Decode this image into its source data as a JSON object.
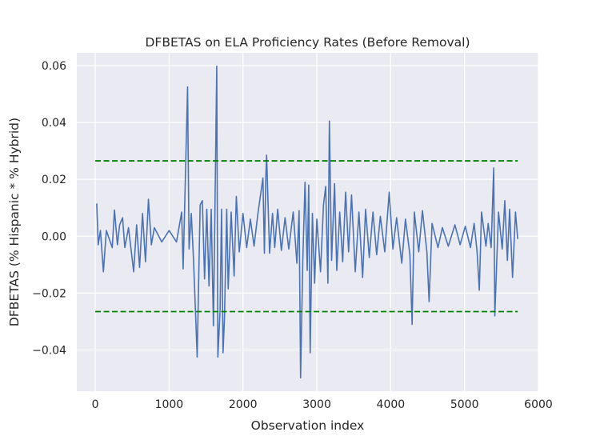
{
  "chart_data": {
    "type": "line",
    "title": "DFBETAS on ELA Proficiency Rates (Before Removal)",
    "xlabel": "Observation index",
    "ylabel": "DFBETAS (% Hispanic * % Hybrid)",
    "xlim": [
      -250,
      6000
    ],
    "ylim": [
      -0.0545,
      0.0645
    ],
    "xticks": [
      0,
      1000,
      2000,
      3000,
      4000,
      5000,
      6000
    ],
    "xtick_labels": [
      "0",
      "1000",
      "2000",
      "3000",
      "4000",
      "5000",
      "6000"
    ],
    "yticks": [
      -0.04,
      -0.02,
      0.0,
      0.02,
      0.04,
      0.06
    ],
    "ytick_labels": [
      "−0.04",
      "−0.02",
      "0.00",
      "0.02",
      "0.04",
      "0.06"
    ],
    "grid": true,
    "n_observations": 5720,
    "series": [
      {
        "values": [
          [
            20,
            0.0115
          ],
          [
            40,
            -0.003
          ],
          [
            70,
            0.002
          ],
          [
            110,
            -0.0125
          ],
          [
            150,
            0.002
          ],
          [
            230,
            -0.004
          ],
          [
            260,
            0.0092
          ],
          [
            300,
            -0.003
          ],
          [
            330,
            0.004
          ],
          [
            370,
            0.0065
          ],
          [
            400,
            -0.004
          ],
          [
            450,
            0.003
          ],
          [
            520,
            -0.0125
          ],
          [
            560,
            0.004
          ],
          [
            600,
            -0.011
          ],
          [
            640,
            0.008
          ],
          [
            680,
            -0.009
          ],
          [
            720,
            0.013
          ],
          [
            760,
            -0.003
          ],
          [
            800,
            0.003
          ],
          [
            900,
            -0.002
          ],
          [
            1000,
            0.002
          ],
          [
            1100,
            -0.002
          ],
          [
            1170,
            0.0085
          ],
          [
            1190,
            -0.0115
          ],
          [
            1250,
            0.0525
          ],
          [
            1270,
            -0.0045
          ],
          [
            1300,
            0.008
          ],
          [
            1330,
            -0.008
          ],
          [
            1380,
            -0.0425
          ],
          [
            1420,
            0.011
          ],
          [
            1450,
            0.0125
          ],
          [
            1480,
            -0.015
          ],
          [
            1510,
            0.0095
          ],
          [
            1540,
            -0.0175
          ],
          [
            1570,
            0.0095
          ],
          [
            1600,
            -0.0315
          ],
          [
            1620,
            0.0085
          ],
          [
            1645,
            0.0598
          ],
          [
            1660,
            -0.0425
          ],
          [
            1690,
            -0.026
          ],
          [
            1710,
            0.0095
          ],
          [
            1730,
            -0.041
          ],
          [
            1750,
            -0.0285
          ],
          [
            1780,
            0.0095
          ],
          [
            1800,
            -0.0185
          ],
          [
            1840,
            0.0085
          ],
          [
            1880,
            -0.014
          ],
          [
            1910,
            0.014
          ],
          [
            1950,
            -0.0055
          ],
          [
            2000,
            0.008
          ],
          [
            2050,
            -0.004
          ],
          [
            2100,
            0.006
          ],
          [
            2150,
            -0.0035
          ],
          [
            2200,
            0.0075
          ],
          [
            2270,
            0.0205
          ],
          [
            2290,
            -0.006
          ],
          [
            2310,
            0.0215
          ],
          [
            2320,
            0.0285
          ],
          [
            2360,
            -0.006
          ],
          [
            2400,
            0.008
          ],
          [
            2430,
            -0.004
          ],
          [
            2470,
            0.0095
          ],
          [
            2520,
            -0.005
          ],
          [
            2570,
            0.0065
          ],
          [
            2620,
            -0.0045
          ],
          [
            2680,
            0.0085
          ],
          [
            2730,
            -0.0095
          ],
          [
            2760,
            0.009
          ],
          [
            2780,
            -0.0498
          ],
          [
            2810,
            -0.0085
          ],
          [
            2840,
            0.019
          ],
          [
            2870,
            -0.012
          ],
          [
            2890,
            0.018
          ],
          [
            2910,
            -0.041
          ],
          [
            2940,
            0.008
          ],
          [
            2970,
            -0.0165
          ],
          [
            3000,
            0.006
          ],
          [
            3050,
            -0.0125
          ],
          [
            3090,
            0.011
          ],
          [
            3120,
            0.0175
          ],
          [
            3150,
            -0.0165
          ],
          [
            3170,
            0.0405
          ],
          [
            3200,
            -0.0085
          ],
          [
            3240,
            0.0185
          ],
          [
            3270,
            -0.012
          ],
          [
            3310,
            0.0085
          ],
          [
            3350,
            -0.009
          ],
          [
            3390,
            0.0155
          ],
          [
            3430,
            -0.0055
          ],
          [
            3470,
            0.0145
          ],
          [
            3520,
            -0.0125
          ],
          [
            3570,
            0.0085
          ],
          [
            3620,
            -0.0145
          ],
          [
            3660,
            0.0095
          ],
          [
            3710,
            -0.0075
          ],
          [
            3760,
            0.0085
          ],
          [
            3810,
            -0.0065
          ],
          [
            3860,
            0.007
          ],
          [
            3920,
            -0.0055
          ],
          [
            3980,
            0.0155
          ],
          [
            4030,
            -0.0045
          ],
          [
            4080,
            0.0065
          ],
          [
            4150,
            -0.0095
          ],
          [
            4200,
            0.006
          ],
          [
            4260,
            -0.0065
          ],
          [
            4290,
            -0.031
          ],
          [
            4320,
            0.0085
          ],
          [
            4380,
            -0.0055
          ],
          [
            4430,
            0.009
          ],
          [
            4490,
            -0.0055
          ],
          [
            4520,
            -0.023
          ],
          [
            4560,
            0.0045
          ],
          [
            4640,
            -0.004
          ],
          [
            4700,
            0.003
          ],
          [
            4780,
            -0.0035
          ],
          [
            4870,
            0.004
          ],
          [
            4940,
            -0.003
          ],
          [
            5010,
            0.0035
          ],
          [
            5080,
            -0.004
          ],
          [
            5130,
            0.0045
          ],
          [
            5170,
            -0.0055
          ],
          [
            5200,
            -0.019
          ],
          [
            5230,
            0.0085
          ],
          [
            5290,
            -0.0035
          ],
          [
            5320,
            0.0045
          ],
          [
            5360,
            -0.004
          ],
          [
            5395,
            0.024
          ],
          [
            5410,
            -0.028
          ],
          [
            5460,
            0.0085
          ],
          [
            5510,
            -0.0045
          ],
          [
            5545,
            0.0125
          ],
          [
            5580,
            -0.0085
          ],
          [
            5610,
            0.0095
          ],
          [
            5650,
            -0.0145
          ],
          [
            5690,
            0.0085
          ],
          [
            5720,
            -0.001
          ]
        ],
        "color": "#4c72b0"
      },
      {
        "values": [
          [
            0,
            0.0265
          ],
          [
            5720,
            0.0265
          ]
        ],
        "color": "#008000",
        "dash": true
      },
      {
        "values": [
          [
            0,
            -0.0265
          ],
          [
            5720,
            -0.0265
          ]
        ],
        "color": "#008000",
        "dash": true
      }
    ]
  }
}
